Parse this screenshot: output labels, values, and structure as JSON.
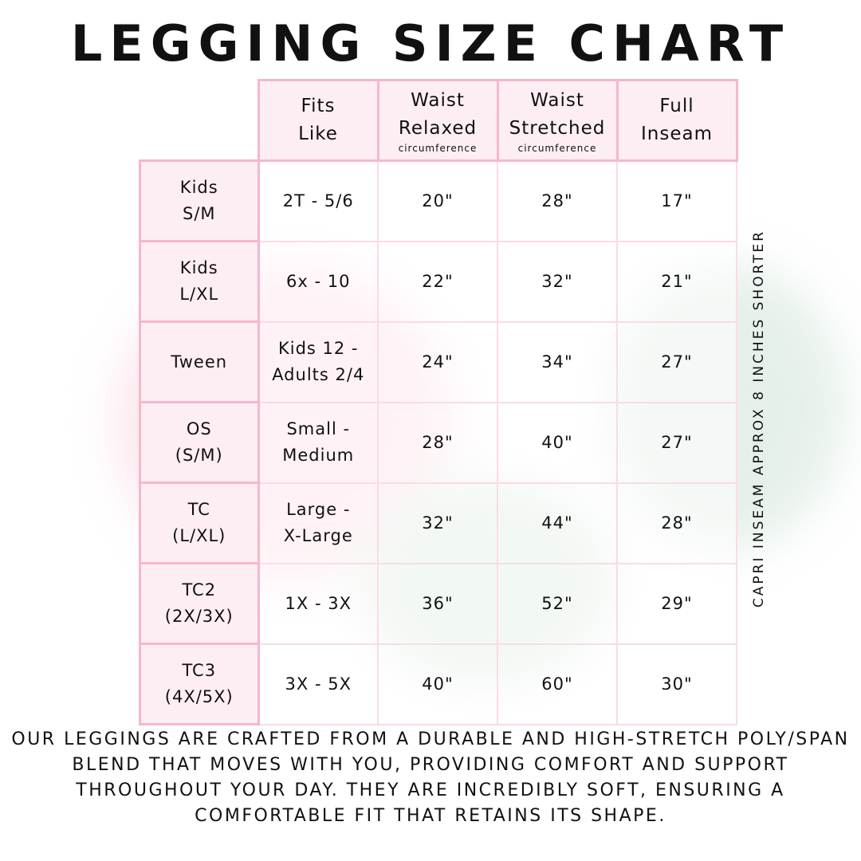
{
  "title": "LEGGING SIZE CHART",
  "table": {
    "headers": [
      {
        "line1": "Fits",
        "line2": "Like",
        "sub": ""
      },
      {
        "line1": "Waist",
        "line2": "Relaxed",
        "sub": "circumference"
      },
      {
        "line1": "Waist",
        "line2": "Stretched",
        "sub": "circumference"
      },
      {
        "line1": "Full",
        "line2": "Inseam",
        "sub": ""
      }
    ],
    "rows": [
      {
        "size1": "Kids",
        "size2": "S/M",
        "fits1": "2T - 5/6",
        "fits2": "",
        "relaxed": "20\"",
        "stretched": "28\"",
        "inseam": "17\""
      },
      {
        "size1": "Kids",
        "size2": "L/XL",
        "fits1": "6x - 10",
        "fits2": "",
        "relaxed": "22\"",
        "stretched": "32\"",
        "inseam": "21\""
      },
      {
        "size1": "Tween",
        "size2": "",
        "fits1": "Kids 12 -",
        "fits2": "Adults 2/4",
        "relaxed": "24\"",
        "stretched": "34\"",
        "inseam": "27\""
      },
      {
        "size1": "OS",
        "size2": "(S/M)",
        "fits1": "Small -",
        "fits2": "Medium",
        "relaxed": "28\"",
        "stretched": "40\"",
        "inseam": "27\""
      },
      {
        "size1": "TC",
        "size2": "(L/XL)",
        "fits1": "Large -",
        "fits2": "X-Large",
        "relaxed": "32\"",
        "stretched": "44\"",
        "inseam": "28\""
      },
      {
        "size1": "TC2",
        "size2": "(2X/3X)",
        "fits1": "1X - 3X",
        "fits2": "",
        "relaxed": "36\"",
        "stretched": "52\"",
        "inseam": "29\""
      },
      {
        "size1": "TC3",
        "size2": "(4X/5X)",
        "fits1": "3X - 5X",
        "fits2": "",
        "relaxed": "40\"",
        "stretched": "60\"",
        "inseam": "30\""
      }
    ]
  },
  "side_note": "CAPRI INSEAM APPROX 8 INCHES SHORTER",
  "paragraph": "Our leggings are crafted from a durable and high-stretch poly/span blend that moves with you, providing comfort and support throughout your day. They are incredibly soft, ensuring a comfortable fit that retains its shape.",
  "colors": {
    "border": "#f6b8c9",
    "header_fill": "#fdeef3"
  }
}
